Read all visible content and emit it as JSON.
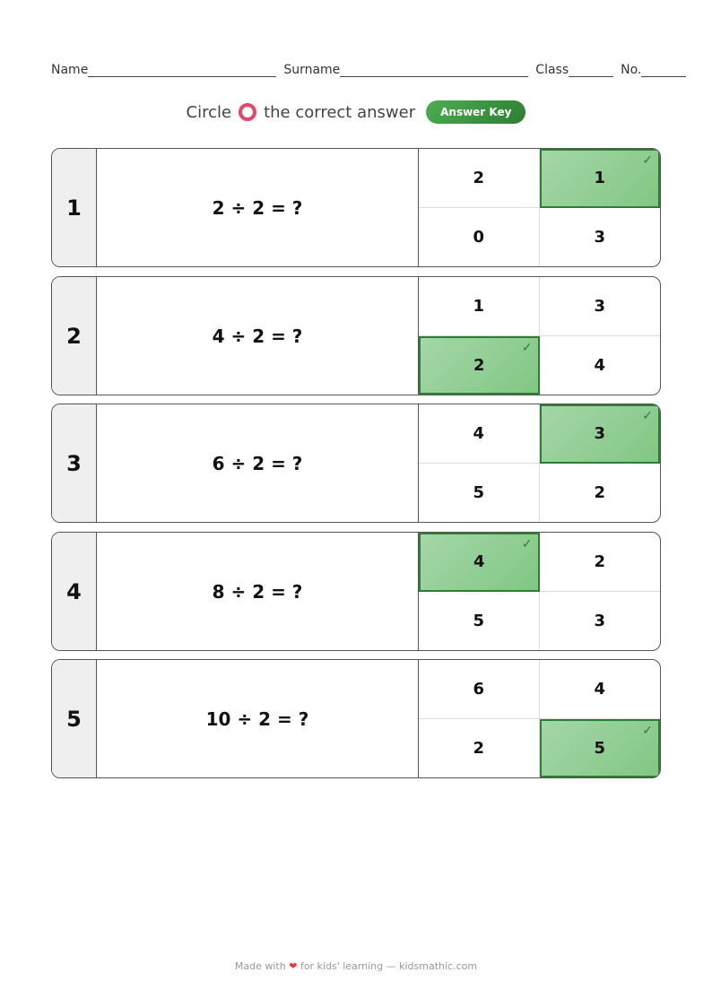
{
  "header": {
    "name_label": "Name",
    "surname_label": "Surname",
    "class_label": "Class",
    "no_label": "No."
  },
  "instruction": {
    "before": "Circle",
    "after": "the correct answer",
    "answer_key_label": "Answer Key",
    "ring_color": "#e8436a"
  },
  "questions": [
    {
      "number": "1",
      "text": "2 ÷ 2 = ?",
      "options": [
        "2",
        "1",
        "0",
        "3"
      ],
      "correct_index": 1
    },
    {
      "number": "2",
      "text": "4 ÷ 2 = ?",
      "options": [
        "1",
        "3",
        "2",
        "4"
      ],
      "correct_index": 2
    },
    {
      "number": "3",
      "text": "6 ÷ 2 = ?",
      "options": [
        "4",
        "3",
        "5",
        "2"
      ],
      "correct_index": 1
    },
    {
      "number": "4",
      "text": "8 ÷ 2 = ?",
      "options": [
        "4",
        "2",
        "5",
        "3"
      ],
      "correct_index": 0
    },
    {
      "number": "5",
      "text": "10 ÷ 2 = ?",
      "options": [
        "6",
        "4",
        "2",
        "5"
      ],
      "correct_index": 3
    }
  ],
  "check_mark": "✓",
  "footer": {
    "before": "Made with",
    "heart": "❤",
    "after": "for kids' learning — kidsmathic.com"
  }
}
